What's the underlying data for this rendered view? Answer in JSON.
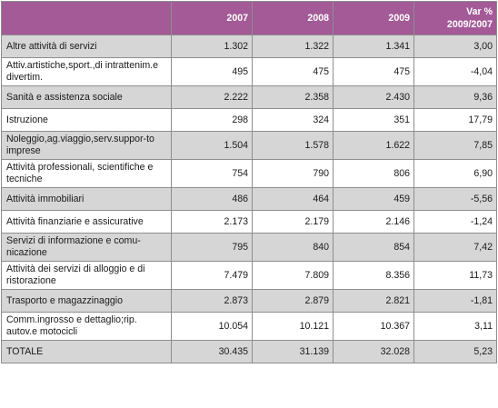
{
  "table": {
    "columns": [
      "",
      "2007",
      "2008",
      "2009",
      "Var %",
      "2009/2007"
    ],
    "rows": [
      {
        "label": "Altre attività di servizi",
        "v2007": "1.302",
        "v2008": "1.322",
        "v2009": "1.341",
        "var": "3,00"
      },
      {
        "label": "Attiv.artistiche,sport.,di intrattenim.e divertim.",
        "v2007": "495",
        "v2008": "475",
        "v2009": "475",
        "var": "-4,04"
      },
      {
        "label": "Sanità e assistenza sociale",
        "v2007": "2.222",
        "v2008": "2.358",
        "v2009": "2.430",
        "var": "9,36"
      },
      {
        "label": "Istruzione",
        "v2007": "298",
        "v2008": "324",
        "v2009": "351",
        "var": "17,79"
      },
      {
        "label": "Noleggio,ag.viaggio,serv.suppor-to imprese",
        "v2007": "1.504",
        "v2008": "1.578",
        "v2009": "1.622",
        "var": "7,85"
      },
      {
        "label": "Attività professionali, scientifiche e tecniche",
        "v2007": "754",
        "v2008": "790",
        "v2009": "806",
        "var": "6,90"
      },
      {
        "label": "Attività immobiliari",
        "v2007": "486",
        "v2008": "464",
        "v2009": "459",
        "var": "-5,56"
      },
      {
        "label": "Attività finanziarie e assicurative",
        "v2007": "2.173",
        "v2008": "2.179",
        "v2009": "2.146",
        "var": "-1,24"
      },
      {
        "label": "Servizi di informazione e comu-nicazione",
        "v2007": "795",
        "v2008": "840",
        "v2009": "854",
        "var": "7,42"
      },
      {
        "label": "Attività dei servizi di alloggio e di ristorazione",
        "v2007": "7.479",
        "v2008": "7.809",
        "v2009": "8.356",
        "var": "11,73"
      },
      {
        "label": "Trasporto e magazzinaggio",
        "v2007": "2.873",
        "v2008": "2.879",
        "v2009": "2.821",
        "var": "-1,81"
      },
      {
        "label": "Comm.ingrosso e dettaglio;rip. autov.e motocicli",
        "v2007": "10.054",
        "v2008": "10.121",
        "v2009": "10.367",
        "var": "3,11"
      },
      {
        "label": "TOTALE",
        "v2007": "30.435",
        "v2008": "31.139",
        "v2009": "32.028",
        "var": "5,23"
      }
    ]
  },
  "colors": {
    "header_bg": "#a35a97",
    "header_text": "#ffffff",
    "shade_row": "#d6d6d6",
    "white_row": "#ffffff",
    "border": "#8e8e8e"
  }
}
